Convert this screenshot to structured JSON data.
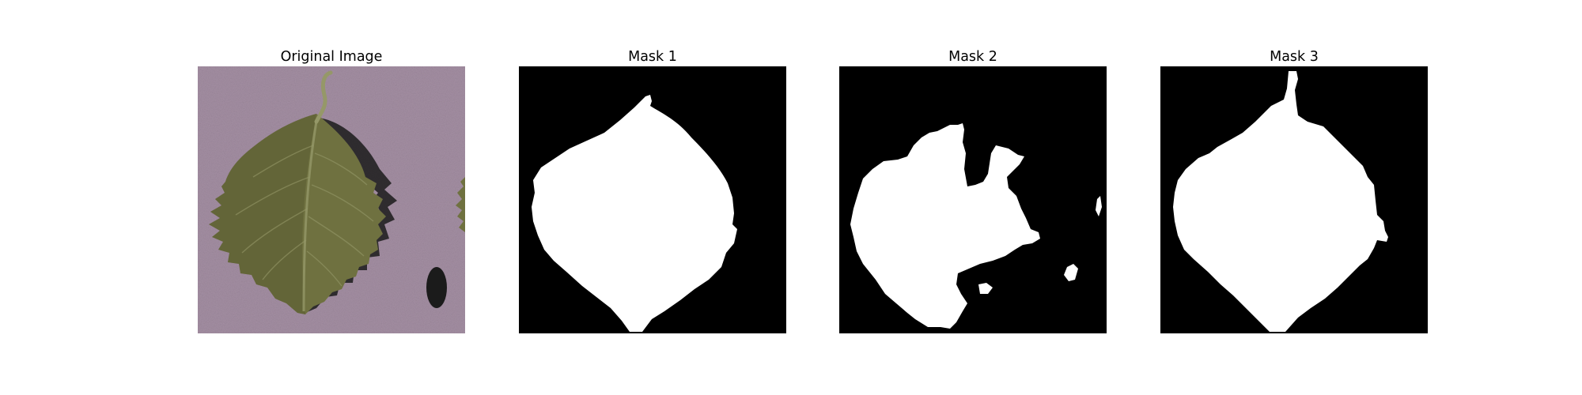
{
  "panels": [
    {
      "title": "Original Image",
      "kind": "photo",
      "subject": "leaf-photo"
    },
    {
      "title": "Mask 1",
      "kind": "mask"
    },
    {
      "title": "Mask 2",
      "kind": "mask"
    },
    {
      "title": "Mask 3",
      "kind": "mask"
    }
  ],
  "colors": {
    "page_background": "#ffffff",
    "photo_background": "#a48fa3",
    "leaf_fill": "#6f7140",
    "leaf_dark": "#4c4f2b",
    "leaf_vein": "#959868",
    "shadow": "#1b1b1b",
    "mask_background": "#000000",
    "mask_foreground": "#ffffff"
  }
}
